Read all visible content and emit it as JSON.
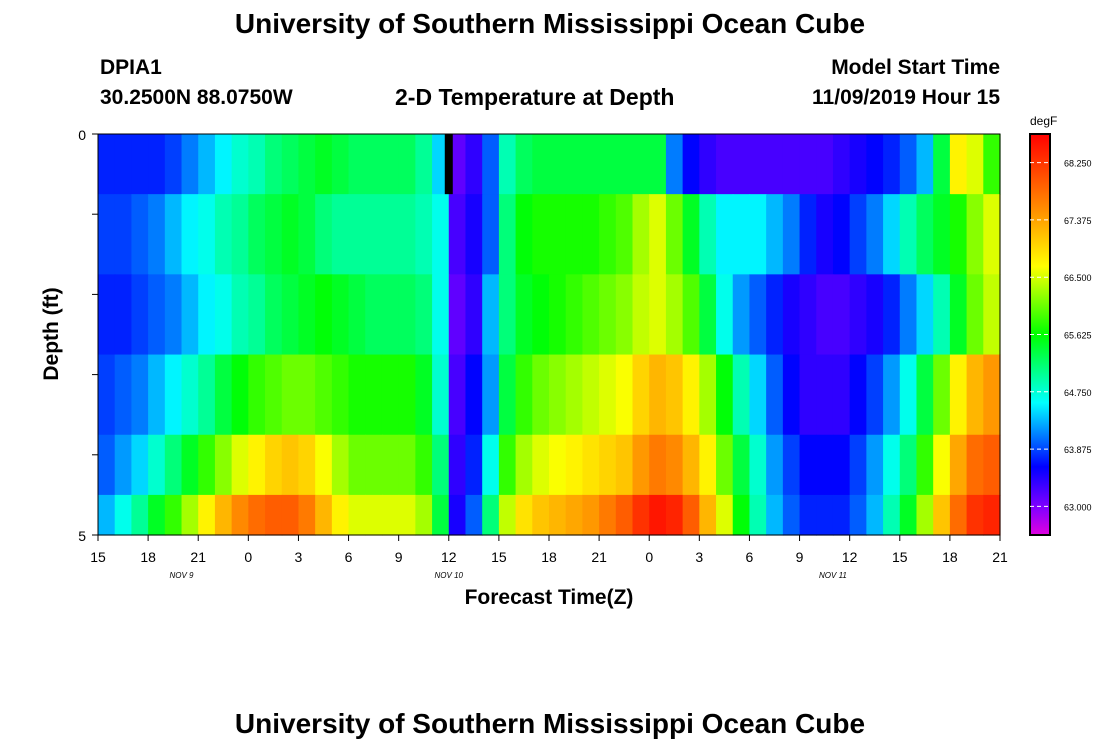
{
  "header": {
    "title": "University of Southern Mississippi Ocean Cube",
    "footer_title": "University of Southern Mississippi Ocean Cube",
    "station_id": "DPIA1",
    "station_coords": "30.2500N 88.0750W",
    "model_label": "Model Start Time",
    "model_time": "11/09/2019 Hour 15"
  },
  "chart_data": {
    "type": "heatmap",
    "title": "2-D Temperature at Depth",
    "xlabel": "Forecast Time(Z)",
    "ylabel": "Depth (ft)",
    "ylim": [
      0,
      5
    ],
    "y_ticks": [
      "0",
      "5"
    ],
    "x_tick_labels": [
      "15",
      "18",
      "21",
      "0",
      "3",
      "6",
      "9",
      "12",
      "15",
      "18",
      "21",
      "0",
      "3",
      "6",
      "9",
      "12",
      "15",
      "18",
      "21"
    ],
    "date_labels": [
      {
        "label": "NOV  9",
        "hour_index": 5
      },
      {
        "label": "NOV  10",
        "hour_index": 21
      },
      {
        "label": "NOV  11",
        "hour_index": 44
      }
    ],
    "x_start": "11/09/2019 15Z",
    "hours": 54,
    "depth_bins_ft": [
      0.25,
      1.25,
      2.25,
      3.25,
      4.25,
      4.75
    ],
    "colorbar": {
      "unit": "degF",
      "min": 63.0,
      "max": 68.25,
      "ticks": [
        "68.250",
        "67.375",
        "66.500",
        "65.625",
        "64.750",
        "63.875",
        "63.000"
      ]
    },
    "missing_marker": {
      "hour": 21,
      "depth_ft": 0.5
    },
    "temperature_degF": [
      [
        64.0,
        64.0,
        64.0,
        64.0,
        64.1,
        64.3,
        64.5,
        64.7,
        64.9,
        65.0,
        65.2,
        65.3,
        65.4,
        65.5,
        65.4,
        65.3,
        65.3,
        65.3,
        65.3,
        65.1,
        64.6,
        63.5,
        63.7,
        64.2,
        65.0,
        65.3,
        65.4,
        65.4,
        65.4,
        65.4,
        65.4,
        65.4,
        65.4,
        65.4,
        64.3,
        63.9,
        63.7,
        63.6,
        63.6,
        63.6,
        63.6,
        63.6,
        63.6,
        63.6,
        63.7,
        63.8,
        63.9,
        64.0,
        64.2,
        64.5,
        65.4,
        66.6,
        66.4,
        65.8
      ],
      [
        64.1,
        64.1,
        64.2,
        64.3,
        64.5,
        64.7,
        64.8,
        65.0,
        65.1,
        65.3,
        65.4,
        65.5,
        65.4,
        65.2,
        65.1,
        65.1,
        65.1,
        65.1,
        65.1,
        65.0,
        64.8,
        63.6,
        63.8,
        64.2,
        65.2,
        65.6,
        65.7,
        65.7,
        65.7,
        65.7,
        65.8,
        65.9,
        66.2,
        66.4,
        66.0,
        65.5,
        65.0,
        64.7,
        64.7,
        64.7,
        64.5,
        64.3,
        64.0,
        63.8,
        63.9,
        64.1,
        64.3,
        64.6,
        65.0,
        65.3,
        65.5,
        65.7,
        66.1,
        66.4
      ],
      [
        64.0,
        64.0,
        64.1,
        64.2,
        64.3,
        64.5,
        64.7,
        64.8,
        65.0,
        65.1,
        65.3,
        65.4,
        65.5,
        65.6,
        65.5,
        65.4,
        65.3,
        65.3,
        65.3,
        65.2,
        64.8,
        63.5,
        63.7,
        64.5,
        65.2,
        65.5,
        65.6,
        65.7,
        65.8,
        65.9,
        66.0,
        66.1,
        66.3,
        66.4,
        66.2,
        65.9,
        65.4,
        64.8,
        64.4,
        64.2,
        64.0,
        63.8,
        63.7,
        63.6,
        63.6,
        63.7,
        63.8,
        64.0,
        64.3,
        64.6,
        65.0,
        65.5,
        66.0,
        66.3
      ],
      [
        64.1,
        64.2,
        64.3,
        64.5,
        64.7,
        64.9,
        65.1,
        65.4,
        65.6,
        65.8,
        65.9,
        66.0,
        66.0,
        65.9,
        65.8,
        65.7,
        65.7,
        65.7,
        65.7,
        65.5,
        64.9,
        63.6,
        63.9,
        64.4,
        65.4,
        65.8,
        66.0,
        66.1,
        66.2,
        66.3,
        66.4,
        66.5,
        66.8,
        67.0,
        66.9,
        66.6,
        66.2,
        65.6,
        65.0,
        64.6,
        64.2,
        63.9,
        63.7,
        63.7,
        63.7,
        63.9,
        64.1,
        64.4,
        64.8,
        65.4,
        66.0,
        66.6,
        67.0,
        67.2
      ],
      [
        64.2,
        64.4,
        64.6,
        64.9,
        65.2,
        65.5,
        65.8,
        66.1,
        66.4,
        66.6,
        66.8,
        66.9,
        66.8,
        66.5,
        66.2,
        66.0,
        66.0,
        66.0,
        66.0,
        65.8,
        65.2,
        63.7,
        64.0,
        64.8,
        65.8,
        66.2,
        66.4,
        66.5,
        66.6,
        66.7,
        66.8,
        66.9,
        67.2,
        67.4,
        67.3,
        67.0,
        66.6,
        66.0,
        65.4,
        64.9,
        64.4,
        64.1,
        63.9,
        63.9,
        63.9,
        64.1,
        64.4,
        64.8,
        65.2,
        65.8,
        66.5,
        67.1,
        67.5,
        67.6
      ],
      [
        64.5,
        64.8,
        65.1,
        65.5,
        65.8,
        66.2,
        66.6,
        67.0,
        67.3,
        67.5,
        67.6,
        67.6,
        67.4,
        67.0,
        66.6,
        66.4,
        66.4,
        66.4,
        66.4,
        66.2,
        65.4,
        63.8,
        64.2,
        65.2,
        66.3,
        66.7,
        66.9,
        67.0,
        67.1,
        67.2,
        67.4,
        67.6,
        67.9,
        68.1,
        68.0,
        67.6,
        67.0,
        66.4,
        65.6,
        65.0,
        64.5,
        64.2,
        64.0,
        64.0,
        64.0,
        64.2,
        64.5,
        65.0,
        65.5,
        66.2,
        66.9,
        67.5,
        67.9,
        68.0
      ]
    ]
  }
}
